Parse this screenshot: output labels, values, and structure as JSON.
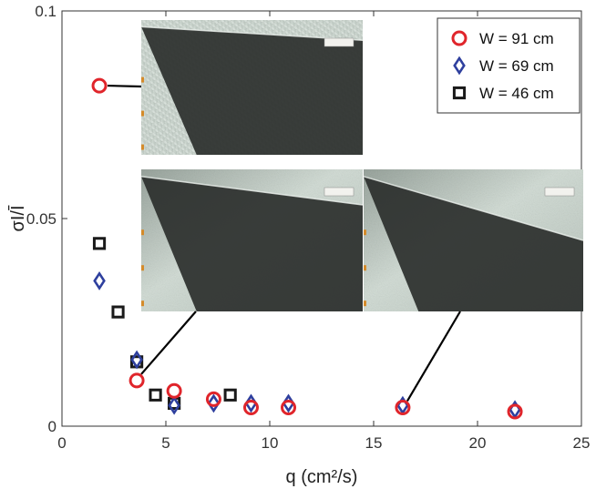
{
  "chart_data": {
    "type": "scatter",
    "xlabel": "q (cm²/s)",
    "ylabel": "σI/Ī",
    "xlim": [
      0,
      25
    ],
    "ylim": [
      0,
      0.1
    ],
    "x_ticks": [
      "0",
      "5",
      "10",
      "15",
      "20",
      "25"
    ],
    "y_ticks": [
      "0",
      "0.05",
      "0.1"
    ],
    "legend_position": "top-right",
    "series": [
      {
        "name": "W = 91 cm",
        "marker": "circle",
        "color": "#e0252b",
        "points": [
          [
            1.8,
            0.082
          ],
          [
            3.6,
            0.011
          ],
          [
            5.4,
            0.0085
          ],
          [
            7.3,
            0.0065
          ],
          [
            9.1,
            0.0045
          ],
          [
            10.9,
            0.0045
          ],
          [
            16.4,
            0.0045
          ],
          [
            21.8,
            0.0035
          ]
        ]
      },
      {
        "name": "W = 69 cm",
        "marker": "diamond",
        "color": "#2e3f9e",
        "points": [
          [
            1.8,
            0.035
          ],
          [
            3.6,
            0.016
          ],
          [
            5.4,
            0.005
          ],
          [
            7.3,
            0.0055
          ],
          [
            9.1,
            0.0055
          ],
          [
            10.9,
            0.0055
          ],
          [
            16.4,
            0.005
          ],
          [
            21.8,
            0.004
          ]
        ]
      },
      {
        "name": "W = 46 cm",
        "marker": "square",
        "color": "#1a1a1a",
        "points": [
          [
            1.8,
            0.044
          ],
          [
            2.7,
            0.0275
          ],
          [
            3.6,
            0.0155
          ],
          [
            4.5,
            0.0075
          ],
          [
            5.4,
            0.0055
          ],
          [
            8.1,
            0.0075
          ]
        ]
      }
    ]
  },
  "insets": [
    {
      "target": [
        1.8,
        0.082
      ]
    },
    {
      "target": [
        3.6,
        0.011
      ]
    },
    {
      "target": [
        16.4,
        0.0045
      ]
    }
  ],
  "inset_colors": {
    "light": "#c8d2cc",
    "dark": "#2b2f2c",
    "stripe": "#e4ece6"
  }
}
